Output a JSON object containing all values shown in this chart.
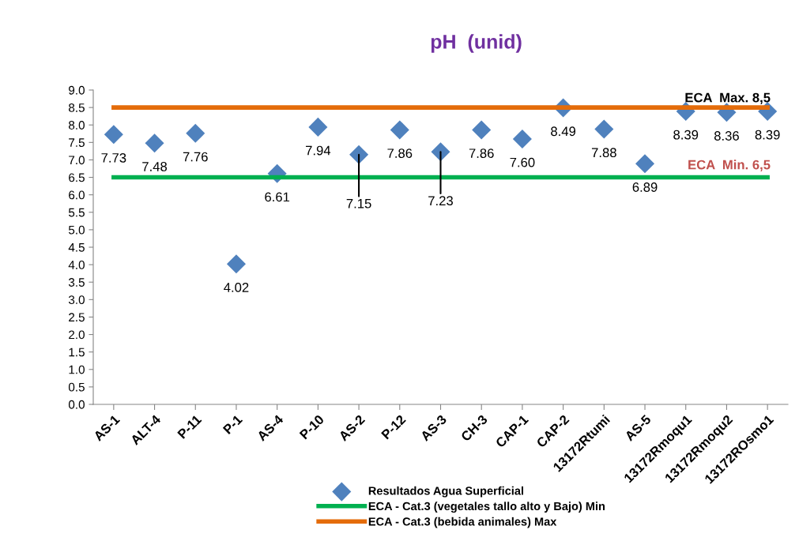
{
  "chart_data": {
    "type": "scatter",
    "title": "pH  (unid)",
    "categories": [
      "AS-1",
      "ALT-4",
      "P-11",
      "P-1",
      "AS-4",
      "P-10",
      "AS-2",
      "P-12",
      "AS-3",
      "CH-3",
      "CAP-1",
      "CAP-2",
      "13172Rtumi",
      "AS-5",
      "13172Rmoqu1",
      "13172Rmoqu2",
      "13172ROsmo1"
    ],
    "series": [
      {
        "name": "Resultados Agua Superficial",
        "color": "#4f81bd",
        "marker": "diamond",
        "values": [
          7.73,
          7.48,
          7.76,
          4.02,
          6.61,
          7.94,
          7.15,
          7.86,
          7.23,
          7.86,
          7.6,
          8.49,
          7.88,
          6.89,
          8.39,
          8.36,
          8.39
        ],
        "value_labels": [
          "7.73",
          "7.48",
          "7.76",
          "4.02",
          "6.61",
          "7.94",
          null,
          "7.86",
          null,
          "7.86",
          "7.60",
          "8.49",
          "7.88",
          "6.89",
          "8.39",
          "8.36",
          "8.39"
        ]
      },
      {
        "name": "ECA - Cat.3 (vegetales tallo alto y Bajo) Min",
        "type": "line",
        "color": "#00b050",
        "values": [
          6.5,
          6.5,
          6.5,
          6.5,
          6.5,
          6.5,
          6.5,
          6.5,
          6.5,
          6.5,
          6.5,
          6.5,
          6.5,
          6.5,
          6.5,
          6.5,
          6.5
        ]
      },
      {
        "name": "ECA - Cat.3 (bebida animales) Max",
        "type": "line",
        "color": "#e46c0a",
        "values": [
          8.5,
          8.5,
          8.5,
          8.5,
          8.5,
          8.5,
          8.5,
          8.5,
          8.5,
          8.5,
          8.5,
          8.5,
          8.5,
          8.5,
          8.5,
          8.5,
          8.5
        ]
      }
    ],
    "annotations": [
      {
        "text": "7.15",
        "x": "AS-2",
        "y": 7.15
      },
      {
        "text": "7.23",
        "x": "AS-3",
        "y": 7.23
      },
      "ECA  Max. 8,5",
      "ECA  Min. 6,5"
    ],
    "ylim": [
      0,
      9
    ],
    "yticks": [
      {
        "value": 0,
        "label": "0.0"
      },
      {
        "value": 0.5,
        "label": "0.5"
      },
      {
        "value": 1,
        "label": "1.0"
      },
      {
        "value": 1.5,
        "label": "1.5"
      },
      {
        "value": 2,
        "label": "2.0"
      },
      {
        "value": 2.5,
        "label": "2.5"
      },
      {
        "value": 3,
        "label": "3.0"
      },
      {
        "value": 3.5,
        "label": "3.5"
      },
      {
        "value": 4,
        "label": "4.0"
      },
      {
        "value": 4.5,
        "label": "4.5"
      },
      {
        "value": 5,
        "label": "5.0"
      },
      {
        "value": 5.5,
        "label": "5.5"
      },
      {
        "value": 6,
        "label": "6.0"
      },
      {
        "value": 6.5,
        "label": "6.5"
      },
      {
        "value": 7,
        "label": "7.0"
      },
      {
        "value": 7.5,
        "label": "7.5"
      },
      {
        "value": 8,
        "label": "8.0"
      },
      {
        "value": 8.5,
        "label": "8.5"
      },
      {
        "value": 9,
        "label": "9.0"
      }
    ],
    "grid": false,
    "legend": "bottom"
  }
}
